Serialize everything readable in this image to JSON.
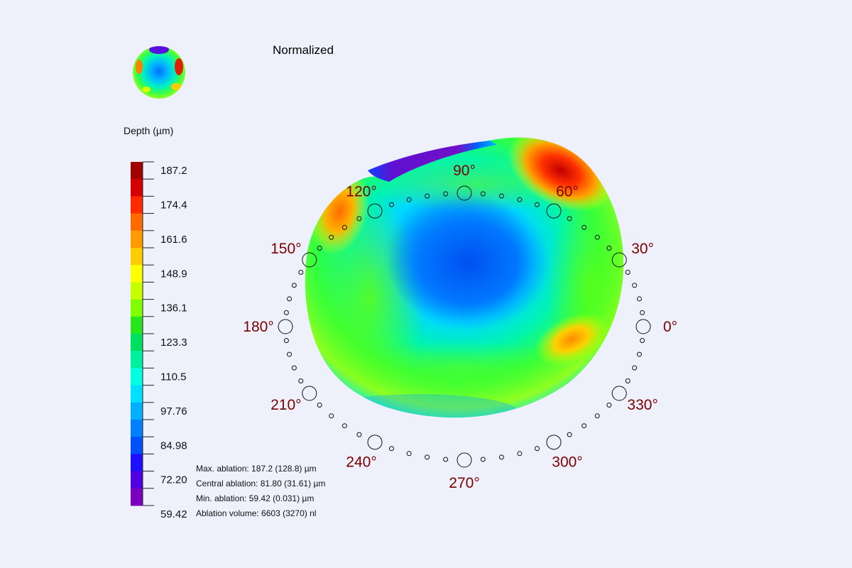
{
  "title": "Normalized",
  "color_scale": {
    "label": "Depth (µm)",
    "ticks": [
      "187.2",
      "174.4",
      "161.6",
      "148.9",
      "136.1",
      "123.3",
      "110.5",
      "97.76",
      "84.98",
      "72.20",
      "59.42"
    ],
    "colors": [
      "#a00000",
      "#d40000",
      "#ff2a00",
      "#ff6a00",
      "#ff9a00",
      "#ffcc00",
      "#ffff00",
      "#c8ff00",
      "#80ff00",
      "#28e61e",
      "#00e060",
      "#00f0a0",
      "#00ffe0",
      "#00e0ff",
      "#00b0ff",
      "#0080ff",
      "#0050ff",
      "#1e10ff",
      "#5000e0",
      "#7a00c0"
    ]
  },
  "angles": [
    "0°",
    "30°",
    "60°",
    "90°",
    "120°",
    "150°",
    "180°",
    "210°",
    "240°",
    "270°",
    "300°",
    "330°"
  ],
  "stats": {
    "max": "Max. ablation: 187.2 (128.8) µm",
    "central": "Central ablation: 81.80 (31.61) µm",
    "min": "Min. ablation: 59.42 (0.031) µm",
    "volume": "Ablation volume: 6603 (3270) nl"
  },
  "colors": {
    "background": "#eef1fb",
    "angle_label": "#7a0000"
  }
}
